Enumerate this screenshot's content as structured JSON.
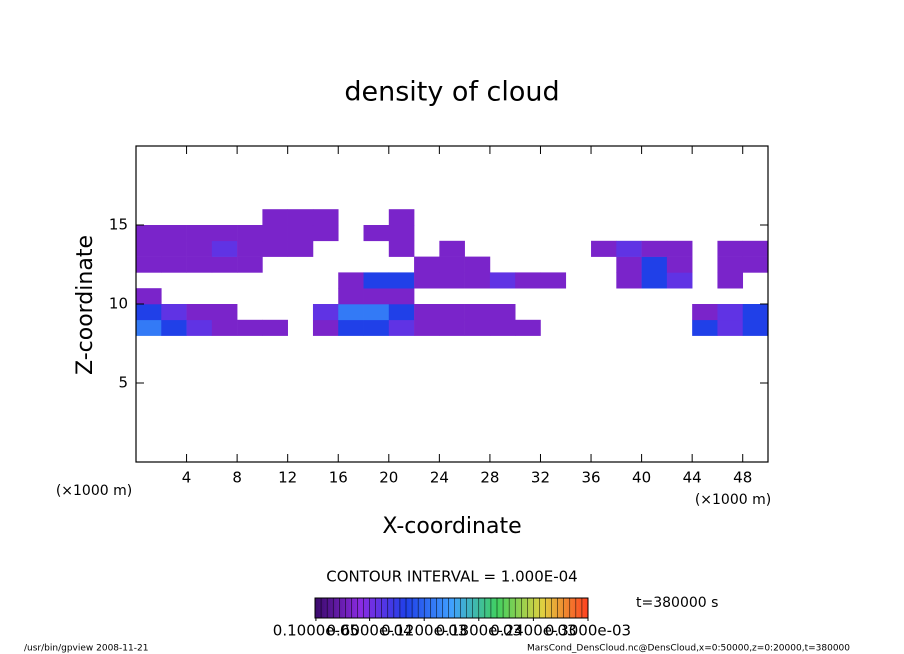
{
  "chart_data": {
    "type": "heatmap",
    "title": "density of cloud",
    "xlabel": "X-coordinate",
    "ylabel": "Z-coordinate",
    "x_unit": "(×1000 m)",
    "xlim": [
      0,
      50
    ],
    "xticks": [
      4,
      8,
      12,
      16,
      20,
      24,
      28,
      32,
      36,
      40,
      44,
      48
    ],
    "ylim": [
      0,
      20
    ],
    "yticks": [
      5,
      10,
      15
    ],
    "x": [
      1,
      3,
      5,
      7,
      9,
      11,
      13,
      15,
      17,
      19,
      21,
      23,
      25,
      27,
      29,
      31,
      33,
      35,
      37,
      39,
      41,
      43,
      45,
      47,
      49
    ],
    "z": [
      8.5,
      9.5,
      10.5,
      11.5,
      12.5,
      13.5,
      14.5,
      15.5
    ],
    "values": [
      [
        0.00013,
        0.0001,
        7e-05,
        4e-05,
        4e-05,
        4e-05,
        null,
        4e-05,
        0.0001,
        0.0001,
        7e-05,
        4e-05,
        4e-05,
        4e-05,
        4e-05,
        4e-05,
        null,
        null,
        null,
        null,
        null,
        null,
        0.0001,
        7e-05,
        0.0001
      ],
      [
        0.0001,
        7e-05,
        4e-05,
        4e-05,
        null,
        null,
        null,
        7e-05,
        0.00013,
        0.00013,
        0.0001,
        4e-05,
        4e-05,
        4e-05,
        4e-05,
        null,
        null,
        null,
        null,
        null,
        null,
        null,
        4e-05,
        7e-05,
        0.0001
      ],
      [
        4e-05,
        null,
        null,
        null,
        null,
        null,
        null,
        null,
        4e-05,
        4e-05,
        4e-05,
        null,
        null,
        null,
        null,
        null,
        null,
        null,
        null,
        null,
        null,
        null,
        null,
        null,
        null
      ],
      [
        null,
        null,
        null,
        null,
        null,
        null,
        null,
        null,
        4e-05,
        0.0001,
        0.0001,
        4e-05,
        4e-05,
        4e-05,
        7e-05,
        4e-05,
        4e-05,
        null,
        null,
        4e-05,
        0.0001,
        7e-05,
        null,
        4e-05,
        null
      ],
      [
        4e-05,
        4e-05,
        4e-05,
        4e-05,
        4e-05,
        null,
        null,
        null,
        null,
        null,
        null,
        4e-05,
        4e-05,
        4e-05,
        null,
        null,
        null,
        null,
        null,
        4e-05,
        0.0001,
        4e-05,
        null,
        4e-05,
        4e-05
      ],
      [
        4e-05,
        4e-05,
        4e-05,
        7e-05,
        4e-05,
        4e-05,
        4e-05,
        null,
        null,
        null,
        4e-05,
        null,
        4e-05,
        null,
        null,
        null,
        null,
        null,
        4e-05,
        7e-05,
        4e-05,
        4e-05,
        null,
        4e-05,
        4e-05
      ],
      [
        4e-05,
        4e-05,
        4e-05,
        4e-05,
        4e-05,
        4e-05,
        4e-05,
        4e-05,
        null,
        4e-05,
        4e-05,
        null,
        null,
        null,
        null,
        null,
        null,
        null,
        null,
        null,
        null,
        null,
        null,
        null,
        null
      ],
      [
        null,
        null,
        null,
        null,
        null,
        4e-05,
        4e-05,
        4e-05,
        null,
        null,
        4e-05,
        null,
        null,
        null,
        null,
        null,
        null,
        null,
        null,
        null,
        null,
        null,
        null,
        null,
        null
      ]
    ],
    "clim": [
      0,
      0.0003
    ],
    "colormap": [
      "#3a0a6a",
      "#8a2be2",
      "#2040e8",
      "#40a0ff",
      "#40d060",
      "#e0d040",
      "#ff4020"
    ],
    "contour_interval": "CONTOUR INTERVAL = 1.000E-04",
    "time": "t=380000 s",
    "colorbar_ticks": [
      {
        "value": 1e-06,
        "label": "0.1000e-05"
      },
      {
        "value": 6e-05,
        "label": "0.6000e-04"
      },
      {
        "value": 0.00012,
        "label": "0.1200e-03"
      },
      {
        "value": 0.00018,
        "label": "0.1800e-03"
      },
      {
        "value": 0.00024,
        "label": "0.2400e-03"
      },
      {
        "value": 0.0003,
        "label": "0.3000e-03"
      }
    ],
    "footer_left": "/usr/bin/gpview   2008-11-21",
    "footer_right": "MarsCond_DensCloud.nc@DensCloud,x=0:50000,z=0:20000,t=380000"
  }
}
